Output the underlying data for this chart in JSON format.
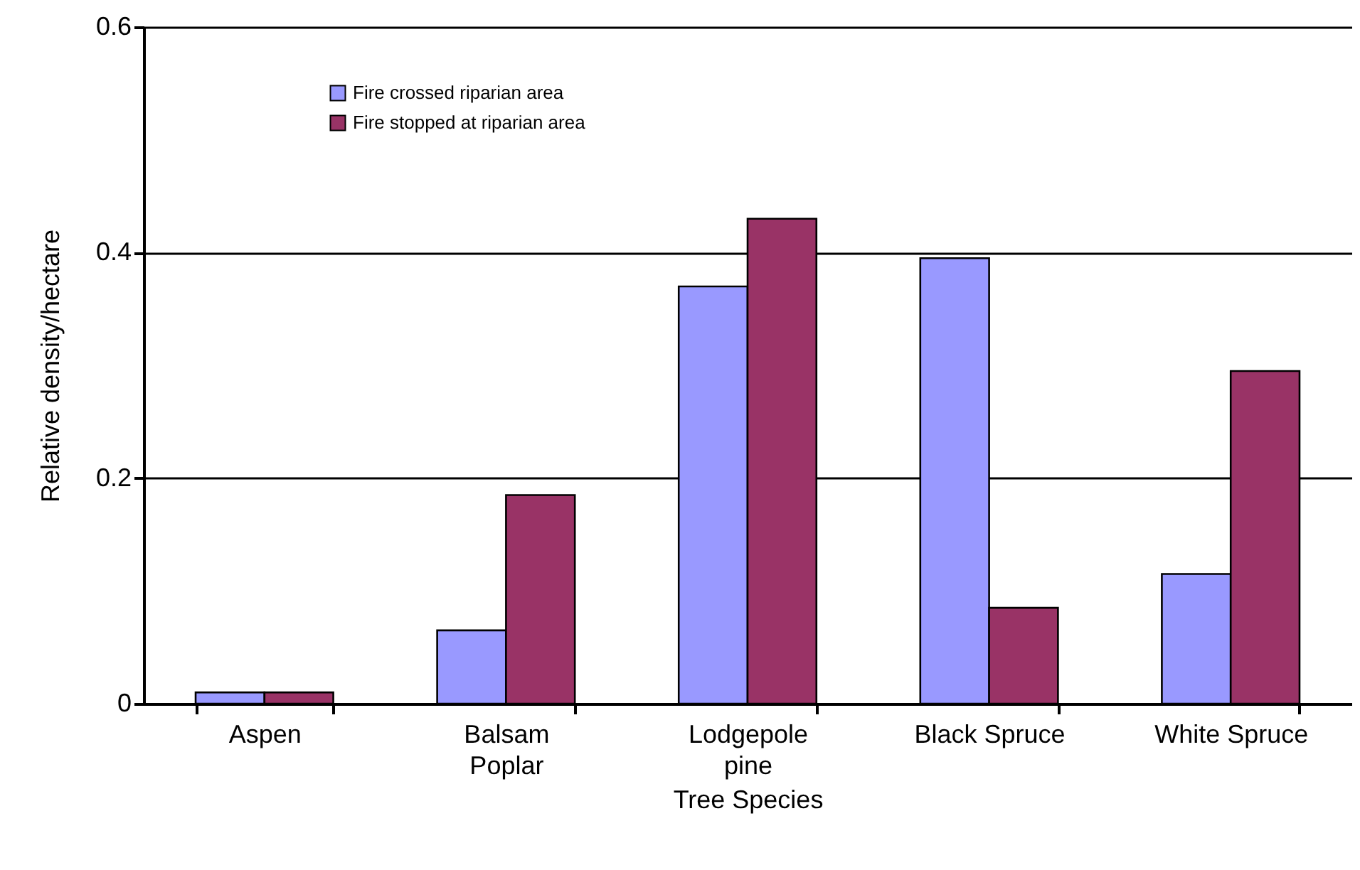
{
  "chart_data": {
    "type": "bar",
    "xlabel": "Tree Species",
    "ylabel": "Relative density/hectare",
    "categories": [
      "Aspen",
      "Balsam\nPoplar",
      "Lodgepole\npine",
      "Black Spruce",
      "White Spruce"
    ],
    "series": [
      {
        "name": "Fire crossed riparian area",
        "color": "#9999ff",
        "values": [
          0.01,
          0.065,
          0.37,
          0.395,
          0.115
        ]
      },
      {
        "name": "Fire stopped at riparian area",
        "color": "#993366",
        "values": [
          0.01,
          0.185,
          0.43,
          0.085,
          0.295
        ]
      }
    ],
    "ylim": [
      0,
      0.6
    ],
    "yticks": [
      0,
      0.2,
      0.4,
      0.6
    ],
    "grid": "y",
    "legend": "top left"
  }
}
